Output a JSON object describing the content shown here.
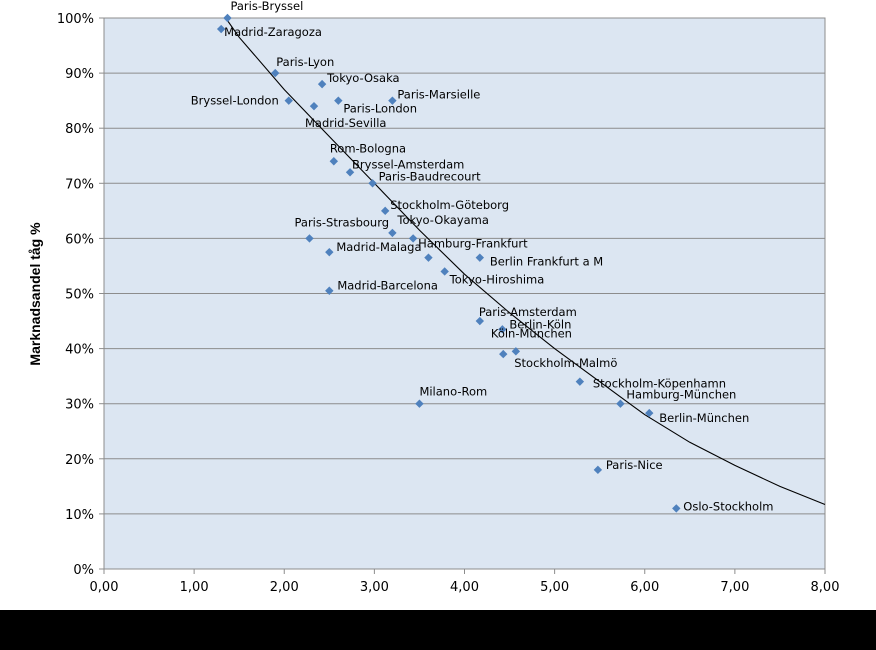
{
  "chart_data": {
    "type": "scatter",
    "ylabel": "Marknadsandel tåg %",
    "xlim": [
      0,
      8
    ],
    "ylim": [
      0,
      100
    ],
    "x_ticks": [
      "0,00",
      "1,00",
      "2,00",
      "3,00",
      "4,00",
      "5,00",
      "6,00",
      "7,00",
      "8,00"
    ],
    "y_ticks": [
      "0%",
      "10%",
      "20%",
      "30%",
      "40%",
      "50%",
      "60%",
      "70%",
      "80%",
      "90%",
      "100%"
    ],
    "grid": "horizontal",
    "colors": {
      "plot_bg": "#DCE6F2",
      "marker": "#4F81BD",
      "grid": "#8C8C8C",
      "trend": "#000000"
    },
    "trendline": {
      "type": "curve",
      "points": [
        [
          1.35,
          100
        ],
        [
          1.5,
          96.5
        ],
        [
          2,
          87
        ],
        [
          2.5,
          78.5
        ],
        [
          3,
          70
        ],
        [
          3.5,
          61.5
        ],
        [
          4,
          53.5
        ],
        [
          4.5,
          46.5
        ],
        [
          5,
          40
        ],
        [
          5.5,
          34
        ],
        [
          6,
          28
        ],
        [
          6.5,
          23
        ],
        [
          7,
          18.8
        ],
        [
          7.5,
          15
        ],
        [
          8,
          11.7
        ]
      ]
    },
    "points": [
      {
        "label": "Paris-Bryssel",
        "x": 1.37,
        "y": 100
      },
      {
        "label": "Madrid-Zaragoza",
        "x": 1.3,
        "y": 98
      },
      {
        "label": "Paris-Lyon",
        "x": 1.9,
        "y": 90
      },
      {
        "label": "Tokyo-Osaka",
        "x": 2.42,
        "y": 88
      },
      {
        "label": "Bryssel-London",
        "x": 2.05,
        "y": 85
      },
      {
        "label": "Paris-London",
        "x": 2.6,
        "y": 85
      },
      {
        "label": "Madrid-Sevilla",
        "x": 2.33,
        "y": 84
      },
      {
        "label": "Paris-Marsielle",
        "x": 3.2,
        "y": 85
      },
      {
        "label": "Rom-Bologna",
        "x": 2.55,
        "y": 74
      },
      {
        "label": "Bryssel-Amsterdam",
        "x": 2.73,
        "y": 72
      },
      {
        "label": "Paris-Baudrecourt",
        "x": 2.98,
        "y": 70
      },
      {
        "label": "Stockholm-Göteborg",
        "x": 3.12,
        "y": 65
      },
      {
        "label": "Paris-Strasbourg",
        "x": 2.28,
        "y": 60
      },
      {
        "label": "Tokyo-Okayama",
        "x": 3.2,
        "y": 61
      },
      {
        "label": "Hamburg-Frankfurt",
        "x": 3.43,
        "y": 60
      },
      {
        "label": "Madrid-Malaga",
        "x": 2.5,
        "y": 57.5
      },
      {
        "label": "Berlin Frankfurt a M",
        "x": 4.17,
        "y": 56.5
      },
      {
        "label": "",
        "x": 3.6,
        "y": 56.5
      },
      {
        "label": "Tokyo-Hiroshima",
        "x": 3.78,
        "y": 54
      },
      {
        "label": "Madrid-Barcelona",
        "x": 2.5,
        "y": 50.5
      },
      {
        "label": "Paris-Amsterdam",
        "x": 4.17,
        "y": 45
      },
      {
        "label": "Berlin-Köln",
        "x": 4.42,
        "y": 43.5
      },
      {
        "label": "Köln-München",
        "x": 4.57,
        "y": 39.5
      },
      {
        "label": "Stockholm-Malmö",
        "x": 4.43,
        "y": 39
      },
      {
        "label": "Stockholm-Köpenhamn",
        "x": 5.28,
        "y": 34
      },
      {
        "label": "Milano-Rom",
        "x": 3.5,
        "y": 30
      },
      {
        "label": "Hamburg-München",
        "x": 5.73,
        "y": 30
      },
      {
        "label": "Berlin-München",
        "x": 6.05,
        "y": 28.3
      },
      {
        "label": "Paris-Nice",
        "x": 5.48,
        "y": 18
      },
      {
        "label": "Oslo-Stockholm",
        "x": 6.35,
        "y": 11
      }
    ]
  }
}
